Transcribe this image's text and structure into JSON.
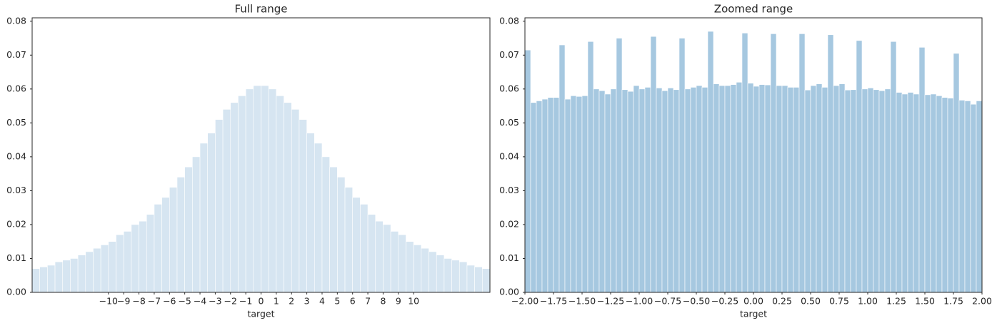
{
  "chart_data": [
    {
      "type": "histogram",
      "title": "Full range",
      "x_label": "target",
      "color": "#d6e5f1",
      "bins": [
        -15,
        -14.5,
        -14,
        -13.5,
        -13,
        -12.5,
        -12,
        -11.5,
        -11,
        -10.5,
        -10,
        -9.5,
        -9,
        -8.5,
        -8,
        -7.5,
        -7,
        -6.5,
        -6,
        -5.5,
        -5,
        -4.5,
        -4,
        -3.5,
        -3,
        -2.5,
        -2,
        -1.5,
        -1,
        -0.5,
        0,
        0.5,
        1,
        1.5,
        2,
        2.5,
        3,
        3.5,
        4,
        4.5,
        5,
        5.5,
        6,
        6.5,
        7,
        7.5,
        8,
        8.5,
        9,
        9.5,
        10,
        10.5,
        11,
        11.5,
        12,
        12.5,
        13,
        13.5,
        14,
        14.5,
        15
      ],
      "values": [
        0.007,
        0.0075,
        0.008,
        0.009,
        0.0095,
        0.01,
        0.011,
        0.012,
        0.013,
        0.014,
        0.015,
        0.017,
        0.018,
        0.02,
        0.021,
        0.023,
        0.026,
        0.028,
        0.031,
        0.034,
        0.037,
        0.04,
        0.044,
        0.047,
        0.051,
        0.054,
        0.056,
        0.058,
        0.06,
        0.061,
        0.061,
        0.06,
        0.058,
        0.056,
        0.054,
        0.051,
        0.047,
        0.044,
        0.04,
        0.037,
        0.034,
        0.031,
        0.028,
        0.026,
        0.023,
        0.021,
        0.02,
        0.018,
        0.017,
        0.015,
        0.014,
        0.013,
        0.012,
        0.011,
        0.01,
        0.0095,
        0.009,
        0.008,
        0.0075,
        0.007
      ],
      "xlim": [
        -15,
        15
      ],
      "ylim": [
        0,
        0.081
      ],
      "xticks": [
        {
          "value": -10,
          "label": "−10"
        },
        {
          "value": -9,
          "label": "−9"
        },
        {
          "value": -8,
          "label": "−8"
        },
        {
          "value": -7,
          "label": "−7"
        },
        {
          "value": -6,
          "label": "−6"
        },
        {
          "value": -5,
          "label": "−5"
        },
        {
          "value": -4,
          "label": "−4"
        },
        {
          "value": -3,
          "label": "−3"
        },
        {
          "value": -2,
          "label": "−2"
        },
        {
          "value": -1,
          "label": "−1"
        },
        0,
        1,
        2,
        3,
        4,
        5,
        6,
        7,
        8,
        9,
        10
      ],
      "yticks": [
        {
          "value": 0,
          "label": "0.00"
        },
        {
          "value": 0.01,
          "label": "0.01"
        },
        {
          "value": 0.02,
          "label": "0.02"
        },
        {
          "value": 0.03,
          "label": "0.03"
        },
        {
          "value": 0.04,
          "label": "0.04"
        },
        {
          "value": 0.05,
          "label": "0.05"
        },
        {
          "value": 0.06,
          "label": "0.06"
        },
        {
          "value": 0.07,
          "label": "0.07"
        },
        {
          "value": 0.08,
          "label": "0.08"
        }
      ]
    },
    {
      "type": "histogram",
      "title": "Zoomed range",
      "x_label": "target",
      "color": "#a6c8e0",
      "bins": [
        -2,
        -1.95,
        -1.9,
        -1.85,
        -1.8,
        -1.75,
        -1.7,
        -1.65,
        -1.6,
        -1.55,
        -1.5,
        -1.45,
        -1.4,
        -1.35,
        -1.3,
        -1.25,
        -1.2,
        -1.15,
        -1.1,
        -1.05,
        -1,
        -0.95,
        -0.9,
        -0.85,
        -0.8,
        -0.75,
        -0.7,
        -0.65,
        -0.6,
        -0.55,
        -0.5,
        -0.45,
        -0.4,
        -0.35,
        -0.3,
        -0.25,
        -0.2,
        -0.15,
        -0.1,
        -0.05,
        0,
        0.05,
        0.1,
        0.15,
        0.2,
        0.25,
        0.3,
        0.35,
        0.4,
        0.45,
        0.5,
        0.55,
        0.6,
        0.65,
        0.7,
        0.75,
        0.8,
        0.85,
        0.9,
        0.95,
        1,
        1.05,
        1.1,
        1.15,
        1.2,
        1.25,
        1.3,
        1.35,
        1.4,
        1.45,
        1.5,
        1.55,
        1.6,
        1.65,
        1.7,
        1.75,
        1.8,
        1.85,
        1.9,
        1.95,
        2
      ],
      "values": [
        0.0715,
        0.056,
        0.0565,
        0.057,
        0.0575,
        0.0575,
        0.073,
        0.057,
        0.058,
        0.0578,
        0.058,
        0.074,
        0.06,
        0.0595,
        0.0585,
        0.06,
        0.075,
        0.0598,
        0.0593,
        0.061,
        0.06,
        0.0605,
        0.0755,
        0.0603,
        0.0595,
        0.0603,
        0.0598,
        0.075,
        0.06,
        0.0605,
        0.061,
        0.0605,
        0.077,
        0.0615,
        0.061,
        0.061,
        0.0613,
        0.062,
        0.0765,
        0.0617,
        0.0608,
        0.0613,
        0.0612,
        0.0763,
        0.061,
        0.061,
        0.0605,
        0.0605,
        0.0763,
        0.0597,
        0.061,
        0.0615,
        0.0605,
        0.076,
        0.061,
        0.0615,
        0.0597,
        0.0598,
        0.0743,
        0.06,
        0.0603,
        0.0598,
        0.0595,
        0.06,
        0.074,
        0.059,
        0.0585,
        0.059,
        0.0585,
        0.0723,
        0.0583,
        0.0585,
        0.058,
        0.0575,
        0.0573,
        0.0705,
        0.0567,
        0.0565,
        0.0555,
        0.0565
      ],
      "xlim": [
        -2,
        2
      ],
      "ylim": [
        0,
        0.081
      ],
      "xticks": [
        {
          "value": -2,
          "label": "−2.00"
        },
        {
          "value": -1.75,
          "label": "−1.75"
        },
        {
          "value": -1.5,
          "label": "−1.50"
        },
        {
          "value": -1.25,
          "label": "−1.25"
        },
        {
          "value": -1,
          "label": "−1.00"
        },
        {
          "value": -0.75,
          "label": "−0.75"
        },
        {
          "value": -0.5,
          "label": "−0.50"
        },
        {
          "value": -0.25,
          "label": "−0.25"
        },
        {
          "value": 0,
          "label": "0.00"
        },
        {
          "value": 0.25,
          "label": "0.25"
        },
        {
          "value": 0.5,
          "label": "0.50"
        },
        {
          "value": 0.75,
          "label": "0.75"
        },
        {
          "value": 1,
          "label": "1.00"
        },
        {
          "value": 1.25,
          "label": "1.25"
        },
        {
          "value": 1.5,
          "label": "1.50"
        },
        {
          "value": 1.75,
          "label": "1.75"
        },
        {
          "value": 2,
          "label": "2.00"
        }
      ],
      "yticks": [
        {
          "value": 0,
          "label": "0.00"
        },
        {
          "value": 0.01,
          "label": "0.01"
        },
        {
          "value": 0.02,
          "label": "0.02"
        },
        {
          "value": 0.03,
          "label": "0.03"
        },
        {
          "value": 0.04,
          "label": "0.04"
        },
        {
          "value": 0.05,
          "label": "0.05"
        },
        {
          "value": 0.06,
          "label": "0.06"
        },
        {
          "value": 0.07,
          "label": "0.07"
        },
        {
          "value": 0.08,
          "label": "0.08"
        }
      ]
    }
  ]
}
